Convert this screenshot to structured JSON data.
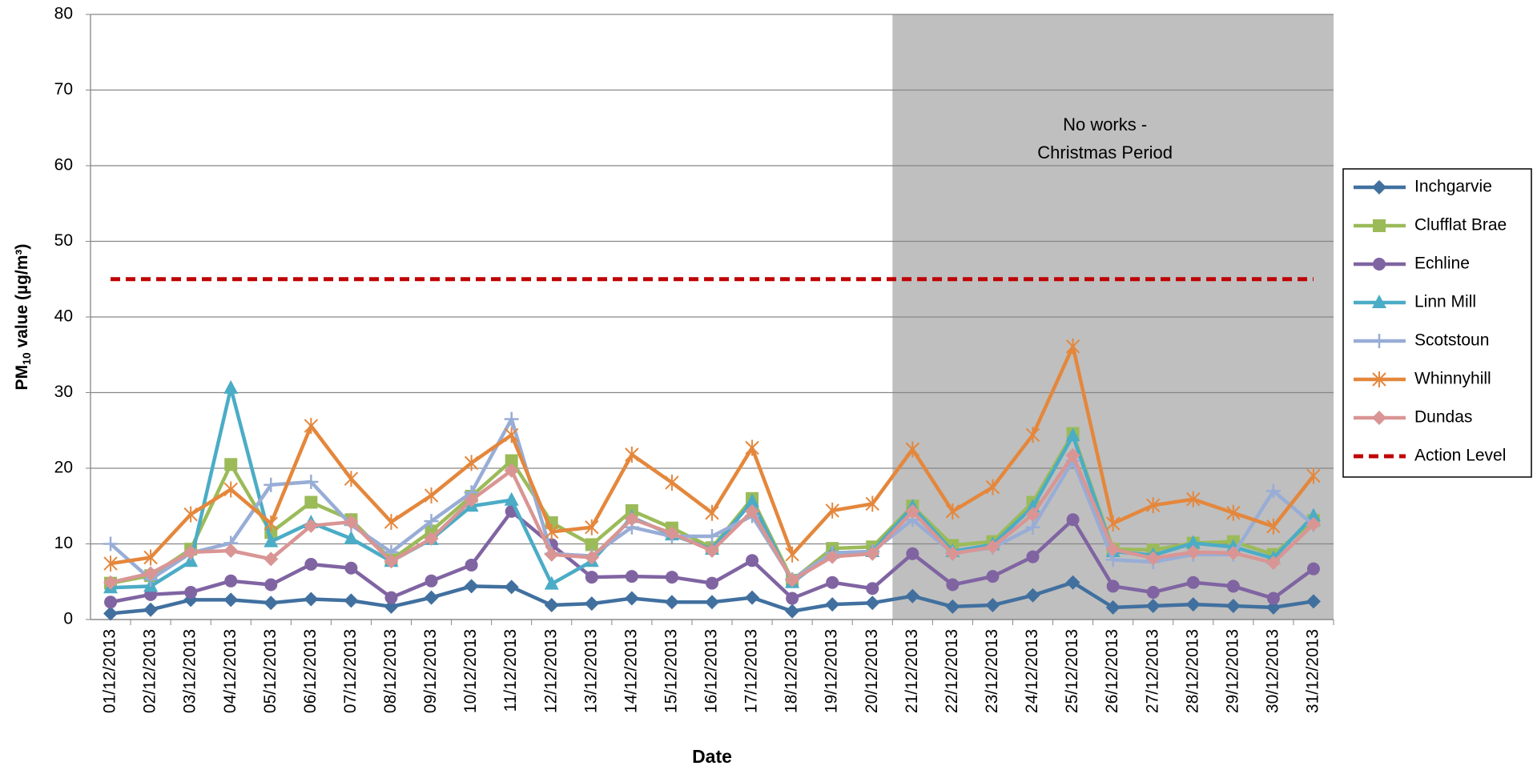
{
  "chart_data": {
    "type": "line",
    "xlabel": "Date",
    "ylabel": {
      "main": "PM",
      "sub": "10",
      "rest": " value (µg/m³)"
    },
    "annotation": [
      "No works -",
      "Christmas Period"
    ],
    "shaded_range": [
      "21/12/2013",
      "31/12/2013"
    ],
    "categories": [
      "01/12/2013",
      "02/12/2013",
      "03/12/2013",
      "04/12/2013",
      "05/12/2013",
      "06/12/2013",
      "07/12/2013",
      "08/12/2013",
      "09/12/2013",
      "10/12/2013",
      "11/12/2013",
      "12/12/2013",
      "13/12/2013",
      "14/12/2013",
      "15/12/2013",
      "16/12/2013",
      "17/12/2013",
      "18/12/2013",
      "19/12/2013",
      "20/12/2013",
      "21/12/2013",
      "22/12/2013",
      "23/12/2013",
      "24/12/2013",
      "25/12/2013",
      "26/12/2013",
      "27/12/2013",
      "28/12/2013",
      "29/12/2013",
      "30/12/2013",
      "31/12/2013"
    ],
    "ylim": [
      0,
      80
    ],
    "yticks": [
      0,
      10,
      20,
      30,
      40,
      50,
      60,
      70,
      80
    ],
    "grid": true,
    "legend": "right",
    "series": [
      {
        "name": "Inchgarvie",
        "color": "#41709f",
        "marker": "diamond",
        "values": [
          0.8,
          1.3,
          2.6,
          2.6,
          2.2,
          2.7,
          2.5,
          1.7,
          2.9,
          4.4,
          4.3,
          1.9,
          2.1,
          2.8,
          2.3,
          2.3,
          2.9,
          1.1,
          2.0,
          2.2,
          3.1,
          1.7,
          1.9,
          3.2,
          4.9,
          1.6,
          1.8,
          2.0,
          1.8,
          1.6,
          2.4
        ]
      },
      {
        "name": "Clufflat Brae",
        "color": "#9bbb59",
        "marker": "square",
        "values": [
          4.8,
          5.8,
          9.3,
          20.5,
          11.5,
          15.5,
          13.2,
          7.9,
          11.7,
          16.3,
          21.0,
          12.8,
          9.9,
          14.4,
          12.1,
          9.5,
          16.0,
          5.2,
          9.4,
          9.6,
          15.0,
          9.8,
          10.3,
          15.5,
          24.6,
          9.3,
          9.2,
          10.1,
          10.3,
          8.6,
          13.1
        ]
      },
      {
        "name": "Echline",
        "color": "#8064a2",
        "marker": "circle",
        "values": [
          2.3,
          3.3,
          3.6,
          5.1,
          4.6,
          7.3,
          6.8,
          2.9,
          5.1,
          7.2,
          14.3,
          9.9,
          5.6,
          5.7,
          5.6,
          4.8,
          7.8,
          2.8,
          4.9,
          4.1,
          8.7,
          4.6,
          5.7,
          8.3,
          13.2,
          4.4,
          3.6,
          4.9,
          4.4,
          2.8,
          6.7
        ]
      },
      {
        "name": "Linn Mill",
        "color": "#4bacc6",
        "marker": "triangle",
        "values": [
          4.2,
          4.4,
          7.7,
          30.6,
          10.3,
          12.8,
          10.7,
          7.7,
          10.6,
          15.0,
          15.8,
          4.7,
          7.7,
          13.5,
          11.2,
          9.3,
          15.6,
          4.9,
          8.8,
          9.0,
          14.9,
          9.0,
          9.9,
          14.9,
          24.3,
          9.0,
          8.5,
          10.1,
          9.6,
          8.1,
          13.7
        ]
      },
      {
        "name": "Scotstoun",
        "color": "#98add6",
        "marker": "plus",
        "values": [
          10.0,
          5.3,
          8.8,
          10.1,
          17.8,
          18.2,
          12.5,
          8.9,
          13.0,
          16.8,
          26.5,
          8.7,
          8.4,
          12.2,
          11.0,
          11.0,
          13.7,
          5.3,
          8.8,
          9.0,
          13.2,
          8.8,
          9.5,
          12.2,
          21.0,
          7.9,
          7.6,
          8.6,
          8.6,
          17.0,
          12.5
        ]
      },
      {
        "name": "Whinnyhill",
        "color": "#e4873c",
        "marker": "star",
        "values": [
          7.4,
          8.2,
          13.9,
          17.2,
          12.7,
          25.6,
          18.6,
          12.9,
          16.4,
          20.7,
          24.4,
          11.6,
          12.2,
          21.8,
          18.1,
          14.1,
          22.7,
          8.6,
          14.4,
          15.3,
          22.5,
          14.3,
          17.5,
          24.4,
          36.1,
          12.7,
          15.1,
          15.9,
          14.1,
          12.3,
          19.0
        ]
      },
      {
        "name": "Dundas",
        "color": "#d99594",
        "marker": "diamond",
        "values": [
          4.9,
          6.1,
          8.9,
          9.1,
          8.0,
          12.4,
          12.9,
          7.7,
          10.7,
          15.8,
          19.7,
          8.6,
          8.2,
          13.3,
          11.4,
          9.1,
          14.3,
          5.2,
          8.3,
          8.7,
          14.3,
          8.7,
          9.6,
          13.9,
          21.7,
          9.3,
          8.1,
          8.9,
          8.8,
          7.5,
          12.6
        ]
      }
    ],
    "action_level": {
      "name": "Action Level",
      "value": 45,
      "color": "#c00000"
    }
  }
}
